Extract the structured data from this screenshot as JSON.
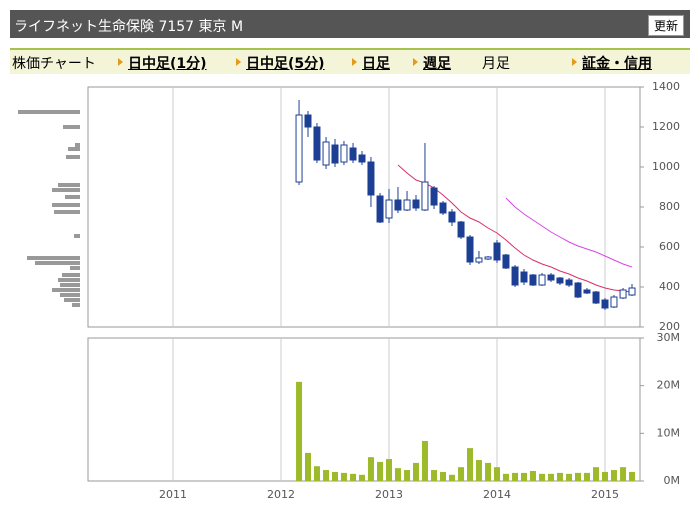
{
  "header": {
    "title": "ライフネット生命保険 7157 東京 M",
    "button": "更新"
  },
  "tabs": [
    "株価チャート",
    "日中足(1分)",
    "日中足(5分)",
    "日足",
    "週足",
    "月足",
    "証金・信用"
  ],
  "chart_data": [
    {
      "type": "candlestick",
      "x": [
        2012.167,
        2012.25,
        2012.333,
        2012.417,
        2012.5,
        2012.583,
        2012.667,
        2012.75,
        2012.833,
        2012.917,
        2013,
        2013.083,
        2013.167,
        2013.25,
        2013.333,
        2013.417,
        2013.5,
        2013.583,
        2013.667,
        2013.75,
        2013.833,
        2013.917,
        2014,
        2014.083,
        2014.167,
        2014.25,
        2014.333,
        2014.417,
        2014.5,
        2014.583,
        2014.667,
        2014.75,
        2014.833,
        2014.917,
        2015,
        2015.083,
        2015.167,
        2015.25
      ],
      "open": [
        925,
        1260,
        1200,
        1010,
        1110,
        1025,
        1095,
        1060,
        1025,
        855,
        745,
        835,
        785,
        835,
        785,
        895,
        820,
        775,
        725,
        650,
        525,
        540,
        620,
        560,
        500,
        475,
        460,
        410,
        460,
        445,
        435,
        420,
        385,
        375,
        335,
        300,
        345,
        360
      ],
      "high": [
        1335,
        1280,
        1220,
        1150,
        1140,
        1130,
        1120,
        1080,
        1050,
        870,
        890,
        900,
        880,
        860,
        1120,
        905,
        830,
        790,
        730,
        660,
        580,
        555,
        635,
        565,
        510,
        490,
        465,
        470,
        470,
        450,
        445,
        425,
        395,
        380,
        345,
        360,
        395,
        415
      ],
      "low": [
        910,
        1150,
        1020,
        990,
        1000,
        1010,
        1020,
        1010,
        800,
        720,
        720,
        770,
        780,
        780,
        780,
        790,
        760,
        705,
        640,
        510,
        515,
        535,
        520,
        490,
        400,
        410,
        405,
        405,
        425,
        410,
        400,
        345,
        365,
        315,
        285,
        295,
        340,
        355
      ],
      "close": [
        1260,
        1200,
        1035,
        1125,
        1020,
        1110,
        1035,
        1025,
        860,
        725,
        835,
        785,
        835,
        795,
        925,
        810,
        770,
        725,
        650,
        525,
        545,
        550,
        535,
        495,
        410,
        425,
        410,
        460,
        435,
        420,
        410,
        350,
        370,
        320,
        295,
        350,
        385,
        395
      ],
      "up_color": "#ffffff",
      "down_color": "#1c3f94",
      "edge_color": "#1c3f94",
      "series": [
        {
          "color": "#d9306a",
          "values": [
            null,
            null,
            null,
            null,
            null,
            null,
            null,
            null,
            null,
            null,
            null,
            1010,
            970,
            935,
            920,
            895,
            860,
            820,
            775,
            745,
            725,
            695,
            670,
            635,
            595,
            560,
            535,
            515,
            500,
            480,
            465,
            445,
            430,
            410,
            395,
            385,
            380,
            375
          ]
        },
        {
          "color": "#d946e6",
          "values": [
            null,
            null,
            null,
            null,
            null,
            null,
            null,
            null,
            null,
            null,
            null,
            null,
            null,
            null,
            null,
            null,
            null,
            null,
            null,
            null,
            null,
            null,
            null,
            845,
            800,
            765,
            735,
            705,
            675,
            650,
            625,
            605,
            590,
            575,
            555,
            535,
            515,
            500
          ]
        }
      ],
      "volume_by_price": {
        "color": "#999999",
        "prices": [
          1275,
          1200,
          1110,
          1090,
          1050,
          910,
          885,
          850,
          810,
          775,
          655,
          545,
          520,
          495,
          460,
          435,
          410,
          385,
          360,
          335,
          310
        ],
        "values": [
          62,
          17,
          5,
          12,
          14,
          22,
          28,
          15,
          28,
          26,
          6,
          53,
          45,
          10,
          18,
          22,
          20,
          28,
          20,
          16,
          8
        ]
      },
      "xlim": [
        2010.213,
        2015.324
      ],
      "xticks": [
        2011,
        2012,
        2013,
        2014,
        2015
      ],
      "ylim": [
        200,
        1400
      ],
      "yticks": [
        200,
        400,
        600,
        800,
        1000,
        1200,
        1400
      ],
      "grid": "x"
    },
    {
      "type": "bar",
      "x": [
        2012.167,
        2012.25,
        2012.333,
        2012.417,
        2012.5,
        2012.583,
        2012.667,
        2012.75,
        2012.833,
        2012.917,
        2013,
        2013.083,
        2013.167,
        2013.25,
        2013.333,
        2013.417,
        2013.5,
        2013.583,
        2013.667,
        2013.75,
        2013.833,
        2013.917,
        2014,
        2014.083,
        2014.167,
        2014.25,
        2014.333,
        2014.417,
        2014.5,
        2014.583,
        2014.667,
        2014.75,
        2014.833,
        2014.917,
        2015,
        2015.083,
        2015.167,
        2015.25
      ],
      "values": [
        20.8,
        5.9,
        3.1,
        2.3,
        1.9,
        1.7,
        1.5,
        1.3,
        5.0,
        4.0,
        4.6,
        2.7,
        2.3,
        3.8,
        8.4,
        2.3,
        1.9,
        1.3,
        2.9,
        6.9,
        4.4,
        3.8,
        2.9,
        1.5,
        1.7,
        1.7,
        2.1,
        1.5,
        1.5,
        1.7,
        1.5,
        1.7,
        1.7,
        2.9,
        1.9,
        2.3,
        2.9,
        1.9
      ],
      "color": "#9cba2a",
      "xlim": [
        2010.213,
        2015.324
      ],
      "xticks": [
        2011,
        2012,
        2013,
        2014,
        2015
      ],
      "ylim": [
        0,
        30
      ],
      "yticks": [
        {
          "value": 0,
          "label": "0M"
        },
        {
          "value": 10,
          "label": "10M"
        },
        {
          "value": 20,
          "label": "20M"
        },
        {
          "value": 30,
          "label": "30M"
        }
      ],
      "grid": "x"
    }
  ]
}
